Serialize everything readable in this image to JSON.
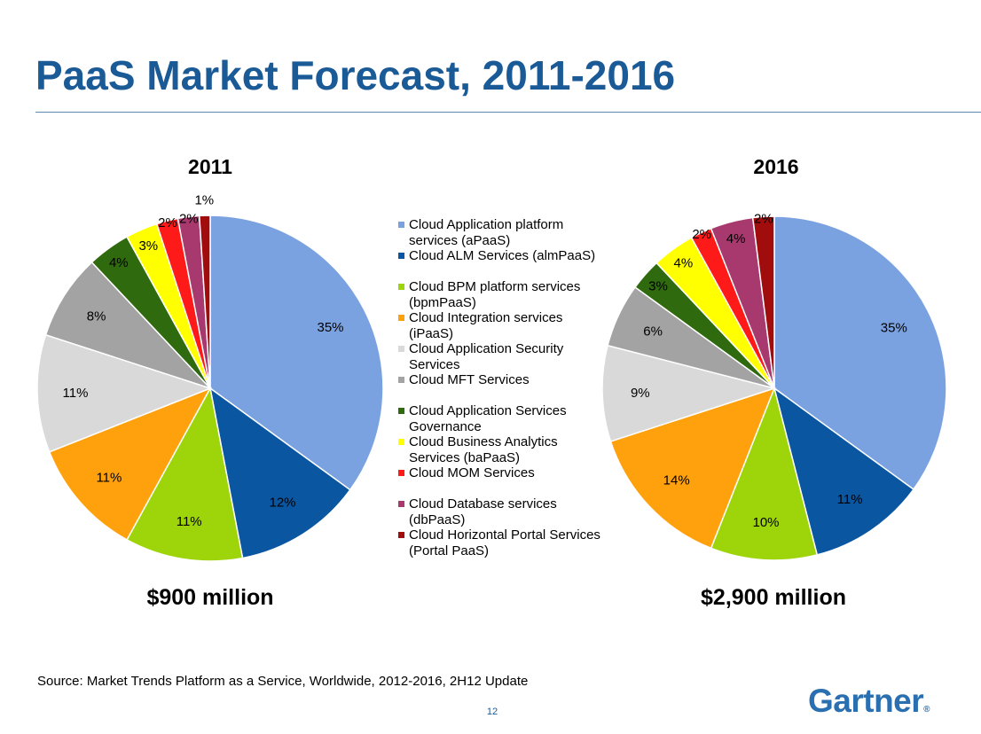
{
  "title": "PaaS Market Forecast, 2011-2016",
  "legend": [
    {
      "label": "Cloud Application platform services (aPaaS)",
      "color": "#7ba2e0"
    },
    {
      "label": "Cloud ALM Services (almPaaS)",
      "color": "#0b56a1"
    },
    {
      "label": "Cloud BPM platform services (bpmPaaS)",
      "color": "#9ed40a"
    },
    {
      "label": "Cloud Integration services (iPaaS)",
      "color": "#ffa10c"
    },
    {
      "label": "Cloud Application Security Services",
      "color": "#d9d9d9"
    },
    {
      "label": "Cloud MFT Services",
      "color": "#a3a3a3"
    },
    {
      "label": "Cloud Application Services Governance",
      "color": "#2f6a0f"
    },
    {
      "label": "Cloud Business Analytics Services (baPaaS)",
      "color": "#ffff00"
    },
    {
      "label": "Cloud MOM Services",
      "color": "#ff1a1a"
    },
    {
      "label": "Cloud Database services (dbPaaS)",
      "color": "#a8396e"
    },
    {
      "label": "Cloud Horizontal Portal Services (Portal PaaS)",
      "color": "#a10c0c"
    }
  ],
  "chart_data": [
    {
      "type": "pie",
      "title": "2011",
      "total_label": "$900 million",
      "categories": [
        "Cloud Application platform services (aPaaS)",
        "Cloud ALM Services (almPaaS)",
        "Cloud BPM platform services (bpmPaaS)",
        "Cloud Integration services (iPaaS)",
        "Cloud Application Security Services",
        "Cloud MFT Services",
        "Cloud Application Services Governance",
        "Cloud Business Analytics Services (baPaaS)",
        "Cloud MOM Services",
        "Cloud Database services (dbPaaS)",
        "Cloud Horizontal Portal Services (Portal PaaS)"
      ],
      "values": [
        35,
        12,
        11,
        11,
        11,
        8,
        4,
        3,
        2,
        2,
        1
      ],
      "labels": [
        "35%",
        "12%",
        "11%",
        "11%",
        "11%",
        "8%",
        "4%",
        "3%",
        "2%",
        "2%",
        "1%"
      ]
    },
    {
      "type": "pie",
      "title": "2016",
      "total_label": "$2,900 million",
      "categories": [
        "Cloud Application platform services (aPaaS)",
        "Cloud ALM Services (almPaaS)",
        "Cloud BPM platform services (bpmPaaS)",
        "Cloud Integration services (iPaaS)",
        "Cloud Application Security Services",
        "Cloud MFT Services",
        "Cloud Application Services Governance",
        "Cloud Business Analytics Services (baPaaS)",
        "Cloud MOM Services",
        "Cloud Database services (dbPaaS)",
        "Cloud Horizontal Portal Services (Portal PaaS)"
      ],
      "values": [
        35,
        11,
        10,
        14,
        9,
        6,
        3,
        4,
        2,
        4,
        2
      ],
      "labels": [
        "35%",
        "11%",
        "10%",
        "14%",
        "9%",
        "6%",
        "3%",
        "4%",
        "2%",
        "4%",
        "2%"
      ]
    }
  ],
  "source": "Source: Market Trends Platform as a Service, Worldwide, 2012-2016, 2H12 Update",
  "page_number": "12",
  "logo": {
    "text": "Gartner",
    "mark": "®"
  }
}
